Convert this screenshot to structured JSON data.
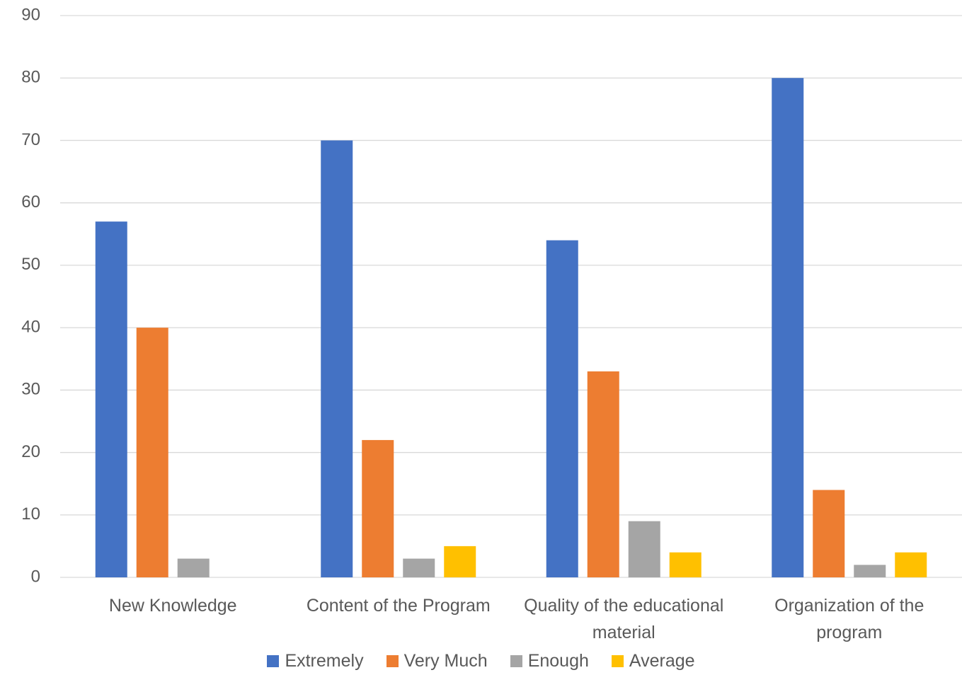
{
  "chart_data": {
    "type": "bar",
    "categories": [
      "New Knowledge",
      "Content of the Program",
      "Quality of the educational material",
      "Organization of the program"
    ],
    "series": [
      {
        "name": "Extremely",
        "color": "#4472c4",
        "values": [
          57,
          70,
          54,
          80
        ]
      },
      {
        "name": "Very Much",
        "color": "#ed7d31",
        "values": [
          40,
          22,
          33,
          14
        ]
      },
      {
        "name": "Enough",
        "color": "#a5a5a5",
        "values": [
          3,
          3,
          9,
          2
        ]
      },
      {
        "name": "Average",
        "color": "#ffc000",
        "values": [
          0,
          5,
          4,
          4
        ]
      }
    ],
    "ylim": [
      0,
      90
    ],
    "yticks": [
      0,
      10,
      20,
      30,
      40,
      50,
      60,
      70,
      80,
      90
    ],
    "grid": true,
    "legend": "bottom"
  }
}
